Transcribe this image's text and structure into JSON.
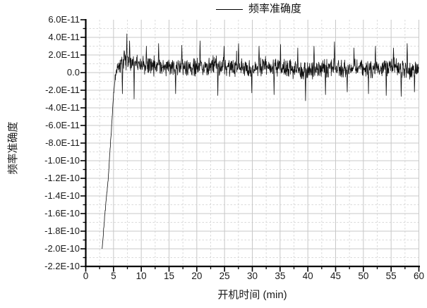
{
  "colors": {
    "background": "#ffffff",
    "curve": "#111111",
    "axis": "#000000",
    "grid_major": "#c8c8c8",
    "grid_minor": "#dadada",
    "text": "#1a1a1a"
  },
  "chart_data": {
    "type": "line",
    "title": "",
    "xlabel": "开机时间 (min)",
    "ylabel": "频率准确度",
    "legend": [
      "频率准确度"
    ],
    "legend_position": "top-center",
    "grid": {
      "major": "solid",
      "minor": "dashed"
    },
    "xlim": [
      0,
      60
    ],
    "ylim": [
      -2.2e-10,
      6e-11
    ],
    "x_major_step": 5,
    "x_minor_step": 2.5,
    "y_major_step": 2e-11,
    "y_minor_step": 1e-11,
    "x_tick_labels": [
      "0",
      "5",
      "10",
      "15",
      "20",
      "25",
      "30",
      "35",
      "40",
      "45",
      "50",
      "55",
      "60"
    ],
    "y_tick_labels": [
      "6.0E-11",
      "4.0E-11",
      "2.0E-11",
      "0.0",
      "-2.0E-11",
      "-4.0E-11",
      "-6.0E-11",
      "-8.0E-11",
      "-1.0E-10",
      "-1.2E-10",
      "-1.4E-10",
      "-1.6E-10",
      "-1.8E-10",
      "-2.0E-10",
      "-2.2E-10"
    ],
    "series_value_unit": "1e-12",
    "series": [
      {
        "name": "频率准确度",
        "start_min": 2.95,
        "end_min": 60.0,
        "step_min": 0.045,
        "seed": 20131,
        "mean_keypoints_e12": [
          [
            2.95,
            -200
          ],
          [
            3.3,
            -172
          ],
          [
            3.6,
            -149
          ],
          [
            3.9,
            -130
          ],
          [
            4.05,
            -120
          ],
          [
            4.3,
            -96
          ],
          [
            4.55,
            -72
          ],
          [
            4.75,
            -52
          ],
          [
            4.95,
            -32
          ],
          [
            5.1,
            -20
          ],
          [
            5.3,
            -8
          ],
          [
            5.55,
            2
          ],
          [
            5.9,
            7
          ],
          [
            6.4,
            10
          ],
          [
            7.0,
            14
          ],
          [
            7.6,
            16
          ],
          [
            8.1,
            13
          ],
          [
            9.0,
            11
          ],
          [
            10.0,
            9
          ],
          [
            12.0,
            8
          ],
          [
            15.0,
            7
          ],
          [
            18.0,
            8
          ],
          [
            20.0,
            6
          ],
          [
            23.0,
            8
          ],
          [
            25.0,
            7
          ],
          [
            28.0,
            6
          ],
          [
            30.0,
            5
          ],
          [
            33.0,
            7
          ],
          [
            36.0,
            5
          ],
          [
            39.0,
            2
          ],
          [
            40.5,
            3
          ],
          [
            42.0,
            5
          ],
          [
            45.0,
            6
          ],
          [
            48.0,
            4
          ],
          [
            50.0,
            5
          ],
          [
            53.0,
            4
          ],
          [
            55.0,
            6
          ],
          [
            58.0,
            4
          ],
          [
            60.0,
            5
          ]
        ],
        "noise_half_amp_keypoints_e12": [
          [
            2.95,
            2
          ],
          [
            4.3,
            3
          ],
          [
            4.9,
            5
          ],
          [
            5.4,
            8
          ],
          [
            6.0,
            11
          ],
          [
            7.0,
            13
          ],
          [
            8.0,
            12
          ],
          [
            10.0,
            12
          ],
          [
            20.0,
            12
          ],
          [
            30.0,
            12
          ],
          [
            40.0,
            12
          ],
          [
            50.0,
            12
          ],
          [
            60.0,
            12
          ]
        ],
        "spike_points_e12": [
          [
            6.6,
            -24
          ],
          [
            7.4,
            44
          ],
          [
            7.9,
            36
          ],
          [
            8.7,
            -30
          ],
          [
            10.9,
            30
          ],
          [
            13.1,
            33
          ],
          [
            16.2,
            -24
          ],
          [
            17.3,
            31
          ],
          [
            20.6,
            36
          ],
          [
            23.8,
            -26
          ],
          [
            24.9,
            30
          ],
          [
            27.5,
            33
          ],
          [
            29.9,
            -23
          ],
          [
            31.2,
            30
          ],
          [
            33.9,
            -25
          ],
          [
            35.1,
            32
          ],
          [
            38.2,
            28
          ],
          [
            39.6,
            -32
          ],
          [
            41.1,
            30
          ],
          [
            43.2,
            -25
          ],
          [
            44.8,
            35
          ],
          [
            47.1,
            -22
          ],
          [
            48.3,
            28
          ],
          [
            50.9,
            -24
          ],
          [
            52.2,
            30
          ],
          [
            54.1,
            -26
          ],
          [
            55.4,
            28
          ],
          [
            56.8,
            -27
          ],
          [
            57.9,
            33
          ],
          [
            59.2,
            -22
          ]
        ],
        "spike_probability": 0.02,
        "spike_multiplier": 2.0
      }
    ]
  }
}
